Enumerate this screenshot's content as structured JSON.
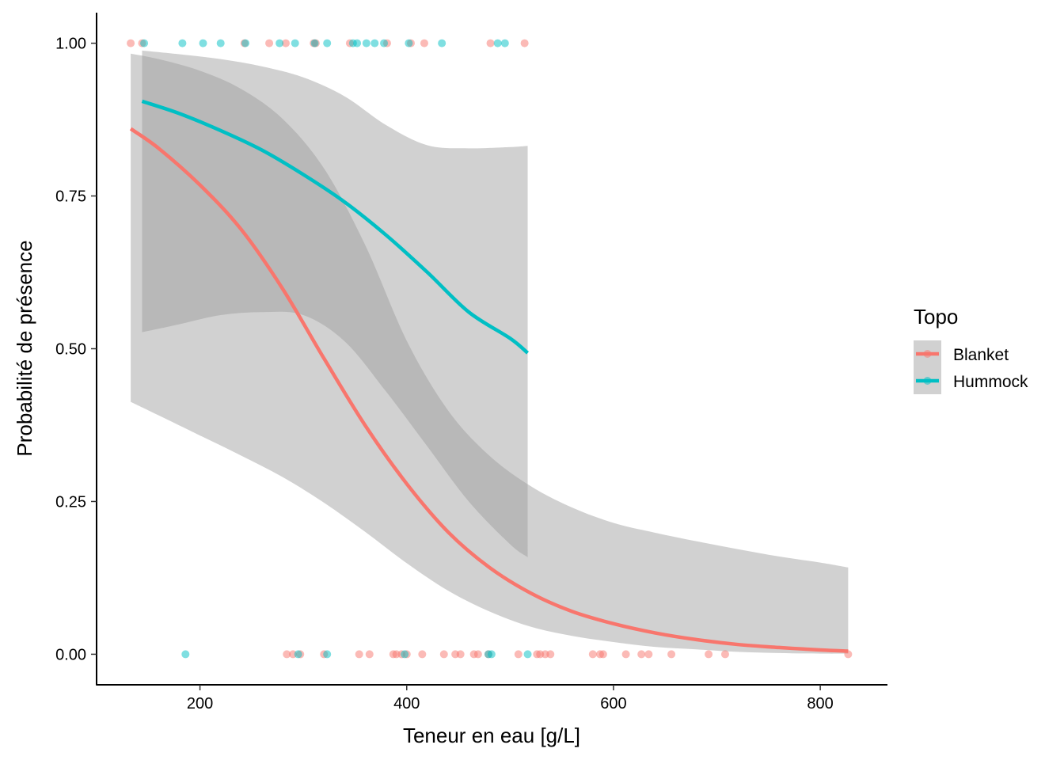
{
  "chart_data": {
    "type": "line",
    "title": "",
    "xlabel": "Teneur en eau [g/L]",
    "ylabel": "Probabilité de présence",
    "xlim": [
      100,
      865
    ],
    "ylim": [
      -0.05,
      1.05
    ],
    "x_ticks": [
      200,
      400,
      600,
      800
    ],
    "x_tick_labels": [
      "200",
      "400",
      "600",
      "800"
    ],
    "y_ticks": [
      0,
      0.25,
      0.5,
      0.75,
      1
    ],
    "y_tick_labels": [
      "0.00",
      "0.25",
      "0.50",
      "0.75",
      "1.00"
    ],
    "grid": false,
    "legend": {
      "title": "Topo",
      "placement": "right"
    },
    "series": [
      {
        "name": "Blanket",
        "color": "#F8766D",
        "curve": {
          "x": [
            133,
            160,
            200,
            240,
            280,
            320,
            360,
            400,
            440,
            480,
            520,
            560,
            600,
            640,
            680,
            720,
            760,
            800,
            827
          ],
          "y": [
            0.86,
            0.828,
            0.768,
            0.695,
            0.598,
            0.484,
            0.374,
            0.279,
            0.2,
            0.142,
            0.1,
            0.07,
            0.05,
            0.035,
            0.024,
            0.016,
            0.011,
            0.007,
            0.005
          ]
        },
        "ribbon": {
          "x": [
            133,
            160,
            200,
            240,
            280,
            320,
            360,
            400,
            440,
            480,
            520,
            560,
            600,
            640,
            680,
            720,
            760,
            800,
            827
          ],
          "lower": [
            0.413,
            0.391,
            0.358,
            0.325,
            0.29,
            0.248,
            0.2,
            0.149,
            0.104,
            0.07,
            0.045,
            0.03,
            0.02,
            0.012,
            0.008,
            0.004,
            0.002,
            0.001,
            0.001
          ],
          "upper": [
            0.983,
            0.974,
            0.955,
            0.925,
            0.876,
            0.795,
            0.669,
            0.513,
            0.399,
            0.325,
            0.275,
            0.24,
            0.215,
            0.199,
            0.185,
            0.172,
            0.16,
            0.15,
            0.142
          ]
        },
        "points": {
          "x": [
            133,
            144,
            243,
            267,
            283,
            310,
            312,
            345,
            381,
            404,
            417,
            481,
            514,
            284,
            290,
            297,
            320,
            354,
            364,
            387,
            390,
            395,
            400,
            415,
            436,
            447,
            452,
            465,
            469,
            479,
            508,
            526,
            529,
            534,
            539,
            580,
            587,
            590,
            612,
            627,
            634,
            656,
            692,
            708,
            827
          ],
          "y": [
            1,
            1,
            1,
            1,
            1,
            1,
            1,
            1,
            1,
            1,
            1,
            1,
            1,
            0,
            0,
            0,
            0,
            0,
            0,
            0,
            0,
            0,
            0,
            0,
            0,
            0,
            0,
            0,
            0,
            0,
            0,
            0,
            0,
            0,
            0,
            0,
            0,
            0,
            0,
            0,
            0,
            0,
            0,
            0,
            0
          ]
        }
      },
      {
        "name": "Hummock",
        "color": "#00BFC4",
        "curve": {
          "x": [
            144,
            180,
            220,
            260,
            300,
            340,
            380,
            420,
            460,
            500,
            517
          ],
          "y": [
            0.905,
            0.885,
            0.857,
            0.825,
            0.785,
            0.74,
            0.686,
            0.625,
            0.56,
            0.517,
            0.493
          ]
        },
        "ribbon": {
          "x": [
            144,
            180,
            220,
            260,
            300,
            340,
            380,
            420,
            460,
            500,
            517
          ],
          "lower": [
            0.527,
            0.54,
            0.555,
            0.56,
            0.555,
            0.512,
            0.43,
            0.34,
            0.25,
            0.18,
            0.159
          ],
          "upper": [
            0.988,
            0.982,
            0.974,
            0.962,
            0.944,
            0.913,
            0.866,
            0.833,
            0.828,
            0.83,
            0.832
          ]
        },
        "points": {
          "x": [
            146,
            183,
            203,
            220,
            244,
            277,
            292,
            311,
            323,
            348,
            352,
            361,
            369,
            378,
            402,
            434,
            488,
            495,
            186,
            295,
            323,
            398,
            479,
            482,
            517
          ],
          "y": [
            1,
            1,
            1,
            1,
            1,
            1,
            1,
            1,
            1,
            1,
            1,
            1,
            1,
            1,
            1,
            1,
            1,
            1,
            0,
            0,
            0,
            0,
            0,
            0,
            0
          ]
        }
      }
    ]
  }
}
